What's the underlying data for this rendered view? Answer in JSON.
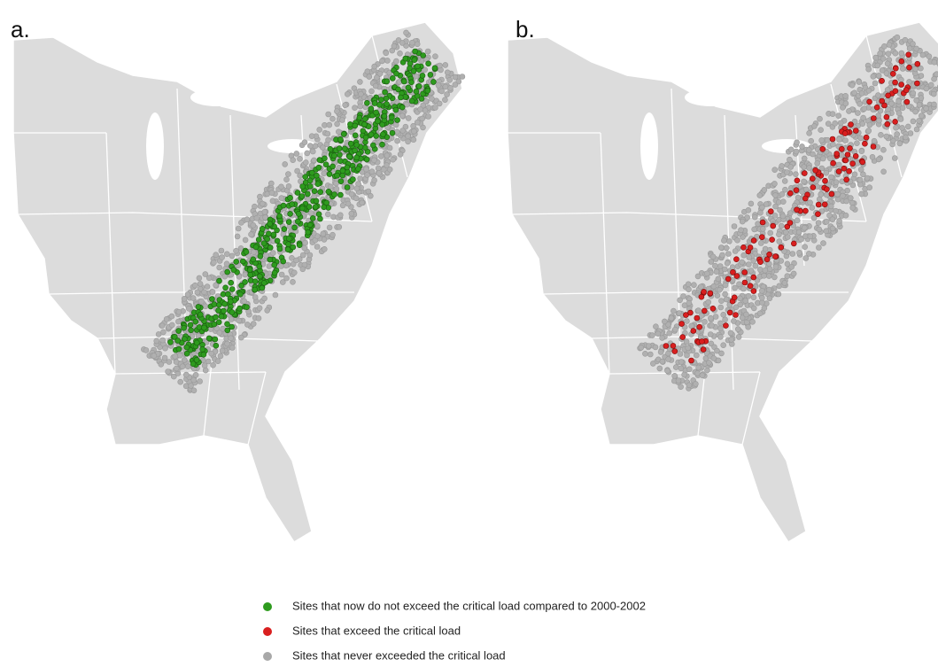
{
  "panels": [
    {
      "label": "a."
    },
    {
      "label": "b."
    }
  ],
  "legend": [
    {
      "label": "Sites that now do not exceed the critical load compared to 2000-2002"
    },
    {
      "label": "Sites that exceed the critical load"
    },
    {
      "label": "Sites that never exceeded the critical load"
    }
  ]
}
